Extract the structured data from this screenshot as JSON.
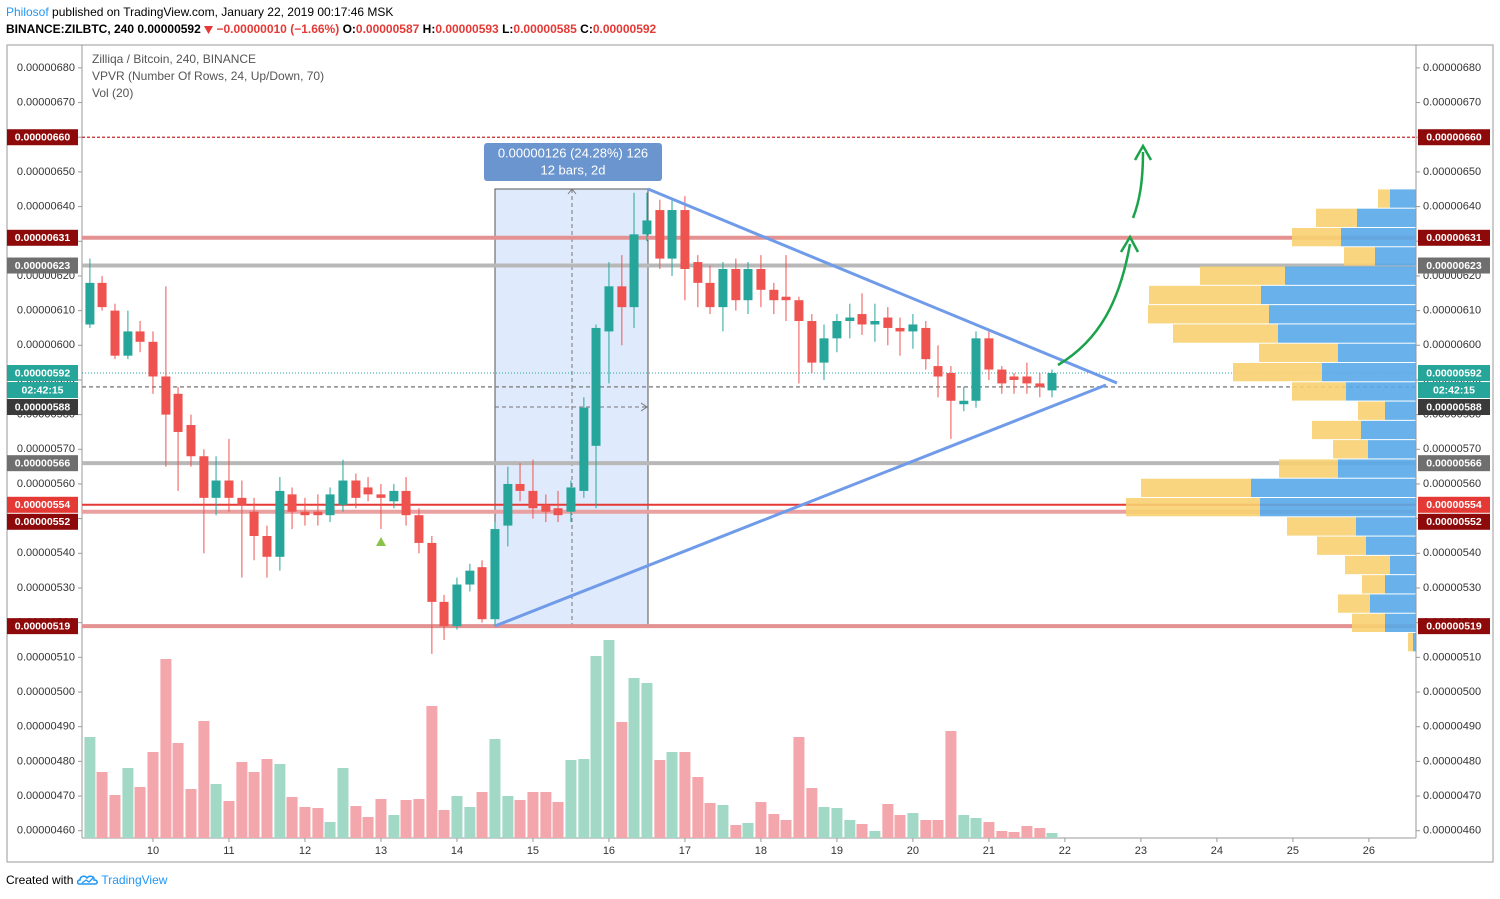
{
  "header": {
    "author": "Philosof",
    "published": "published on TradingView.com, January 22, 2019 00:17:46 MSK",
    "symbol": "BINANCE:ZILBTC, 240",
    "last": "0.00000592",
    "change": "−0.00000010 (−1.66%)",
    "ohlc": [
      {
        "key": "O:",
        "value": "0.00000587"
      },
      {
        "key": "H:",
        "value": "0.00000593"
      },
      {
        "key": "L:",
        "value": "0.00000585"
      },
      {
        "key": "C:",
        "value": "0.00000592"
      }
    ]
  },
  "chart_data": {
    "type": "candlestick",
    "title": "Zilliqa / Bitcoin, 240, BINANCE",
    "indicators": [
      "VPVR (Number Of Rows, 24, Up/Down, 70)",
      "Vol (20)"
    ],
    "x": [
      9.17,
      9.33,
      9.5,
      9.67,
      9.83,
      10,
      10.17,
      10.33,
      10.5,
      10.67,
      10.83,
      11,
      11.17,
      11.33,
      11.5,
      11.67,
      11.83,
      12,
      12.17,
      12.33,
      12.5,
      12.67,
      12.83,
      13,
      13.17,
      13.33,
      13.5,
      13.67,
      13.83,
      14,
      14.17,
      14.33,
      14.5,
      14.67,
      14.83,
      15,
      15.17,
      15.33,
      15.5,
      15.67,
      15.83,
      16,
      16.17,
      16.33,
      16.5,
      16.67,
      16.83,
      17,
      17.17,
      17.33,
      17.5,
      17.67,
      17.83,
      18,
      18.17,
      18.33,
      18.5,
      18.67,
      18.83,
      19,
      19.17,
      19.33,
      19.5,
      19.67,
      19.83,
      20,
      20.17,
      20.33,
      20.5,
      20.67,
      20.83,
      21,
      21.17,
      21.33,
      21.5,
      21.67,
      21.83
    ],
    "open": [
      6.06e-06,
      6.18e-06,
      6.1e-06,
      5.97e-06,
      6.04e-06,
      6.01e-06,
      5.91e-06,
      5.86e-06,
      5.77e-06,
      5.68e-06,
      5.56e-06,
      5.61e-06,
      5.56e-06,
      5.52e-06,
      5.45e-06,
      5.39e-06,
      5.57e-06,
      5.52e-06,
      5.52e-06,
      5.51e-06,
      5.54e-06,
      5.61e-06,
      5.59e-06,
      5.57e-06,
      5.55e-06,
      5.58e-06,
      5.51e-06,
      5.43e-06,
      5.26e-06,
      5.19e-06,
      5.31e-06,
      5.36e-06,
      5.21e-06,
      5.48e-06,
      5.6e-06,
      5.58e-06,
      5.54e-06,
      5.53e-06,
      5.52e-06,
      5.58e-06,
      5.71e-06,
      6.04e-06,
      6.17e-06,
      6.11e-06,
      6.32e-06,
      6.39e-06,
      6.25e-06,
      6.39e-06,
      6.24e-06,
      6.18e-06,
      6.11e-06,
      6.22e-06,
      6.13e-06,
      6.22e-06,
      6.16e-06,
      6.14e-06,
      6.13e-06,
      6.07e-06,
      5.95e-06,
      6.02e-06,
      6.07e-06,
      6.09e-06,
      6.06e-06,
      6.08e-06,
      6.05e-06,
      6.04e-06,
      6.05e-06,
      5.94e-06,
      5.92e-06,
      5.83e-06,
      5.84e-06,
      6.02e-06,
      5.93e-06,
      5.91e-06,
      5.91e-06,
      5.89e-06,
      5.87e-06
    ],
    "close": [
      6.18e-06,
      6.11e-06,
      5.97e-06,
      6.04e-06,
      6.01e-06,
      5.91e-06,
      5.8e-06,
      5.75e-06,
      5.68e-06,
      5.56e-06,
      5.61e-06,
      5.56e-06,
      5.54e-06,
      5.45e-06,
      5.39e-06,
      5.58e-06,
      5.52e-06,
      5.51e-06,
      5.51e-06,
      5.57e-06,
      5.61e-06,
      5.56e-06,
      5.57e-06,
      5.56e-06,
      5.58e-06,
      5.51e-06,
      5.43e-06,
      5.26e-06,
      5.19e-06,
      5.31e-06,
      5.35e-06,
      5.21e-06,
      5.47e-06,
      5.6e-06,
      5.58e-06,
      5.53e-06,
      5.52e-06,
      5.51e-06,
      5.59e-06,
      5.82e-06,
      6.05e-06,
      6.17e-06,
      6.11e-06,
      6.32e-06,
      6.36e-06,
      6.25e-06,
      6.39e-06,
      6.22e-06,
      6.18e-06,
      6.11e-06,
      6.22e-06,
      6.13e-06,
      6.22e-06,
      6.16e-06,
      6.13e-06,
      6.13e-06,
      6.07e-06,
      5.95e-06,
      6.02e-06,
      6.07e-06,
      6.08e-06,
      6.06e-06,
      6.07e-06,
      6.05e-06,
      6.04e-06,
      6.06e-06,
      5.96e-06,
      5.91e-06,
      5.84e-06,
      5.84e-06,
      6.02e-06,
      5.93e-06,
      5.89e-06,
      5.9e-06,
      5.89e-06,
      5.88e-06,
      5.92e-06
    ],
    "high": [
      6.25e-06,
      6.2e-06,
      6.12e-06,
      6.1e-06,
      6.07e-06,
      6.04e-06,
      6.17e-06,
      5.88e-06,
      5.8e-06,
      5.7e-06,
      5.68e-06,
      5.73e-06,
      5.61e-06,
      5.56e-06,
      5.48e-06,
      5.62e-06,
      5.59e-06,
      5.56e-06,
      5.57e-06,
      5.59e-06,
      5.67e-06,
      5.63e-06,
      5.62e-06,
      5.6e-06,
      5.6e-06,
      5.62e-06,
      5.53e-06,
      5.45e-06,
      5.28e-06,
      5.33e-06,
      5.37e-06,
      5.38e-06,
      5.49e-06,
      5.65e-06,
      5.66e-06,
      5.67e-06,
      5.57e-06,
      5.58e-06,
      5.61e-06,
      5.85e-06,
      6.06e-06,
      6.24e-06,
      6.26e-06,
      6.44e-06,
      6.44e-06,
      6.42e-06,
      6.42e-06,
      6.43e-06,
      6.26e-06,
      6.23e-06,
      6.24e-06,
      6.25e-06,
      6.24e-06,
      6.26e-06,
      6.18e-06,
      6.26e-06,
      6.14e-06,
      6.09e-06,
      6.06e-06,
      6.09e-06,
      6.12e-06,
      6.15e-06,
      6.12e-06,
      6.11e-06,
      6.08e-06,
      6.09e-06,
      6.07e-06,
      6e-06,
      5.94e-06,
      5.88e-06,
      6.04e-06,
      6.04e-06,
      5.94e-06,
      5.92e-06,
      5.95e-06,
      5.92e-06,
      5.93e-06
    ],
    "low": [
      6.05e-06,
      6.1e-06,
      5.96e-06,
      5.96e-06,
      5.98e-06,
      5.86e-06,
      5.65e-06,
      5.58e-06,
      5.65e-06,
      5.4e-06,
      5.51e-06,
      5.52e-06,
      5.33e-06,
      5.38e-06,
      5.33e-06,
      5.35e-06,
      5.47e-06,
      5.48e-06,
      5.48e-06,
      5.49e-06,
      5.52e-06,
      5.53e-06,
      5.55e-06,
      5.47e-06,
      5.53e-06,
      5.48e-06,
      5.4e-06,
      5.11e-06,
      5.15e-06,
      5.18e-06,
      5.29e-06,
      5.2e-06,
      5.19e-06,
      5.42e-06,
      5.55e-06,
      5.5e-06,
      5.49e-06,
      5.49e-06,
      5.49e-06,
      5.56e-06,
      5.53e-06,
      5.89e-06,
      6e-06,
      6.05e-06,
      6.3e-06,
      6.22e-06,
      6.2e-06,
      6.13e-06,
      6.11e-06,
      6.09e-06,
      6.04e-06,
      6.1e-06,
      6.09e-06,
      6.11e-06,
      6.09e-06,
      6.07e-06,
      5.89e-06,
      5.92e-06,
      5.9e-06,
      5.98e-06,
      6.02e-06,
      6.03e-06,
      6.01e-06,
      6e-06,
      5.97e-06,
      5.99e-06,
      5.93e-06,
      5.85e-06,
      5.73e-06,
      5.81e-06,
      5.82e-06,
      5.9e-06,
      5.86e-06,
      5.86e-06,
      5.86e-06,
      5.85e-06,
      5.85e-06
    ],
    "volume": [
      101,
      66,
      43,
      70,
      51,
      86,
      179,
      95,
      49,
      117,
      54,
      37,
      76,
      66,
      79,
      74,
      41,
      31,
      30,
      16,
      70,
      32,
      21,
      39,
      23,
      38,
      39,
      132,
      28,
      42,
      31,
      46,
      99,
      42,
      38,
      46,
      46,
      36,
      78,
      79,
      182,
      198,
      116,
      160,
      155,
      78,
      86,
      86,
      61,
      35,
      33,
      13,
      15,
      36,
      24,
      18,
      101,
      50,
      31,
      30,
      18,
      14,
      7,
      34,
      23,
      25,
      18,
      18,
      107,
      23,
      20,
      16,
      7,
      6,
      12,
      10,
      5
    ],
    "up_color": "#26a69a",
    "down_color": "#ef5350",
    "volume_up_color": "#a2d8c6",
    "volume_down_color": "#f3a6ab",
    "xlim": [
      9.066,
      26.62
    ],
    "xticks": [
      10,
      11,
      12,
      13,
      14,
      15,
      16,
      17,
      18,
      19,
      20,
      21,
      22,
      23,
      24,
      25,
      26
    ],
    "ylim": [
      4.579e-06,
      6.866e-06
    ],
    "yticks": [
      {
        "value": 4.6e-06,
        "label": "0.00000460"
      },
      {
        "value": 4.7e-06,
        "label": "0.00000470"
      },
      {
        "value": 4.8e-06,
        "label": "0.00000480"
      },
      {
        "value": 4.9e-06,
        "label": "0.00000490"
      },
      {
        "value": 5e-06,
        "label": "0.00000500"
      },
      {
        "value": 5.1e-06,
        "label": "0.00000510"
      },
      {
        "value": 5.2e-06,
        "label": "0.00000520"
      },
      {
        "value": 5.3e-06,
        "label": "0.00000530"
      },
      {
        "value": 5.4e-06,
        "label": "0.00000540"
      },
      {
        "value": 5.5e-06,
        "label": "0.00000550"
      },
      {
        "value": 5.6e-06,
        "label": "0.00000560"
      },
      {
        "value": 5.7e-06,
        "label": "0.00000570"
      },
      {
        "value": 5.8e-06,
        "label": "0.00000580"
      },
      {
        "value": 5.9e-06,
        "label": "0.00000590"
      },
      {
        "value": 6e-06,
        "label": "0.00000600"
      },
      {
        "value": 6.1e-06,
        "label": "0.00000610"
      },
      {
        "value": 6.2e-06,
        "label": "0.00000620"
      },
      {
        "value": 6.3e-06,
        "label": "0.00000630"
      },
      {
        "value": 6.4e-06,
        "label": "0.00000640"
      },
      {
        "value": 6.5e-06,
        "label": "0.00000650"
      },
      {
        "value": 6.6e-06,
        "label": "0.00000660"
      },
      {
        "value": 6.7e-06,
        "label": "0.00000670"
      },
      {
        "value": 6.8e-06,
        "label": "0.00000680"
      }
    ],
    "volume_lim": [
      0,
      200
    ],
    "vpvr": {
      "ylim": [
        5.116e-06,
        6.451e-06
      ],
      "xlim": [
        0,
        290
      ],
      "up_color": "#58a8e8",
      "down_color": "#f7d070",
      "up": [
        26,
        59,
        75,
        41,
        131,
        155,
        147,
        138,
        78,
        94,
        70,
        31,
        55,
        48,
        78,
        165,
        156,
        60,
        50,
        26,
        31,
        46,
        31,
        3
      ],
      "down": [
        12,
        41,
        49,
        31,
        85,
        112,
        121,
        105,
        79,
        89,
        54,
        27,
        49,
        35,
        59,
        110,
        134,
        69,
        49,
        45,
        23,
        32,
        33,
        5
      ]
    },
    "levels": [
      {
        "value": 6.6e-06,
        "label": "0.00000660",
        "color": "#c62828",
        "width": 1.2,
        "dash": "3 2",
        "bg": "#8e0a0a"
      },
      {
        "value": 6.31e-06,
        "label": "0.00000631",
        "color": "#e39191",
        "width": 4,
        "bg": "#8e0a0a"
      },
      {
        "value": 6.23e-06,
        "label": "0.00000623",
        "color": "#b8b8b8",
        "width": 4,
        "bg": "#6f6f6f"
      },
      {
        "value": 5.92e-06,
        "label": "0.00000592",
        "color": "#26a69a",
        "width": 1,
        "dash": "1 2",
        "bg": "#26a69a",
        "countdown": "02:42:15"
      },
      {
        "value": 5.88e-06,
        "label": "0.00000588",
        "color": "#8a8a8a",
        "width": 1.5,
        "dash": "4 3",
        "bg": "#3a3a3a"
      },
      {
        "value": 5.66e-06,
        "label": "0.00000566",
        "color": "#b8b8b8",
        "width": 4,
        "bg": "#6f6f6f"
      },
      {
        "value": 5.54e-06,
        "label": "0.00000554",
        "color": "#e53935",
        "width": 2,
        "bg": "#e53935"
      },
      {
        "value": 5.52e-06,
        "label": "0.00000552",
        "color": "#e8a0a0",
        "width": 4,
        "bg": "#8e0a0a"
      },
      {
        "value": 5.19e-06,
        "label": "0.00000519",
        "color": "#e39191",
        "width": 4,
        "bg": "#8e0a0a"
      }
    ],
    "measure": {
      "text": "0.00000126 (24.28%) 126",
      "subtext": "12 bars, 2d"
    }
  },
  "footer": {
    "created": "Created with",
    "brand": "TradingView"
  }
}
